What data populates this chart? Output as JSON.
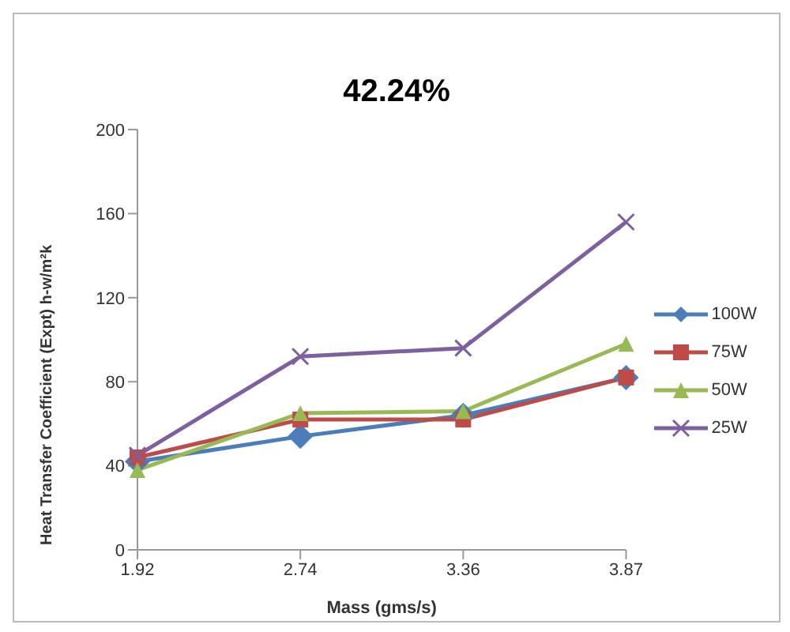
{
  "chart_data": {
    "type": "line",
    "title": "42.24%",
    "xlabel": "Mass (gms/s)",
    "ylabel": "Heat Transfer Coefficient (Expt)  h-w/m²k",
    "categories": [
      "1.92",
      "2.74",
      "3.36",
      "3.87"
    ],
    "series": [
      {
        "name": "100W",
        "color": "#4a7ebb",
        "marker": "diamond",
        "values": [
          42,
          54,
          64,
          82
        ]
      },
      {
        "name": "75W",
        "color": "#be4b48",
        "marker": "square",
        "values": [
          44,
          62,
          62,
          82
        ]
      },
      {
        "name": "50W",
        "color": "#98b954",
        "marker": "triangle",
        "values": [
          38,
          65,
          66,
          98
        ]
      },
      {
        "name": "25W",
        "color": "#7d60a0",
        "marker": "cross",
        "values": [
          45,
          92,
          96,
          156
        ]
      }
    ],
    "ylim": [
      0,
      200
    ],
    "yticks": [
      0,
      40,
      80,
      120,
      160,
      200
    ],
    "grid": false,
    "legend": "right",
    "line_style": "solid"
  }
}
